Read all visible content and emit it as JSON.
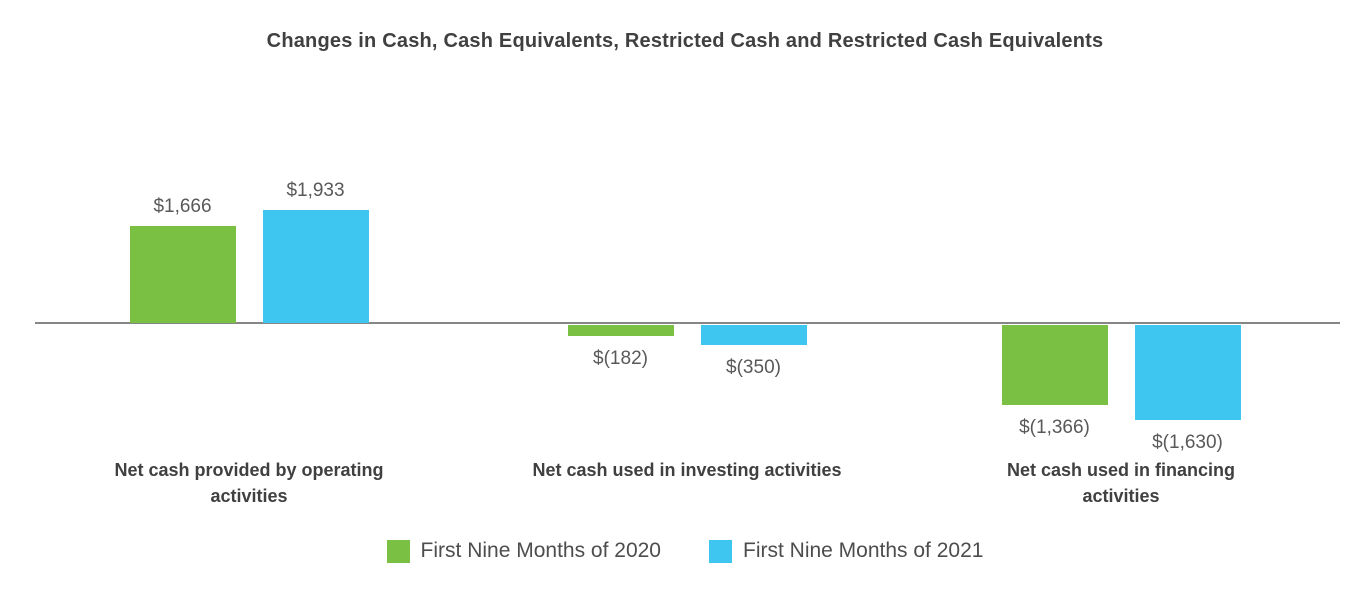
{
  "chart_data": {
    "type": "bar",
    "title": "Changes in Cash, Cash Equivalents, Restricted Cash and Restricted Cash Equivalents",
    "categories": [
      "Net cash provided by operating\nactivities",
      "Net cash used in investing activities",
      "Net cash used in financing activities"
    ],
    "series": [
      {
        "name": "First Nine Months of 2020",
        "color": "#7ac143",
        "values": [
          1666,
          -182,
          -1366
        ],
        "labels": [
          "$1,666",
          "$(182)",
          "$(1,366)"
        ]
      },
      {
        "name": "First Nine Months of 2021",
        "color": "#3ec6f0",
        "values": [
          1933,
          -350,
          -1630
        ],
        "labels": [
          "$1,933",
          "$(350)",
          "$(1,630)"
        ]
      }
    ],
    "ylim": [
      -1700,
      2000
    ],
    "grid": false,
    "axis_color": "#868686",
    "legend_position": "bottom"
  }
}
